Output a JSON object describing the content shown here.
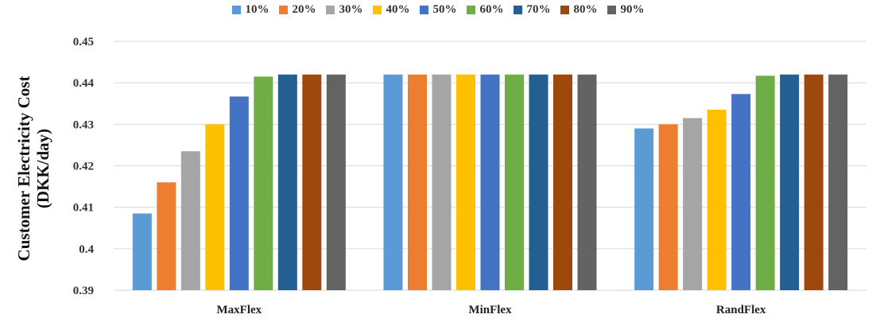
{
  "chart_data": {
    "type": "bar",
    "categories": [
      "MaxFlex",
      "MinFlex",
      "RandFlex"
    ],
    "series": [
      {
        "name": "10%",
        "color": "#5B9BD5",
        "values": [
          0.4085,
          0.442,
          0.429
        ]
      },
      {
        "name": "20%",
        "color": "#ED7D31",
        "values": [
          0.416,
          0.442,
          0.43
        ]
      },
      {
        "name": "30%",
        "color": "#A5A5A5",
        "values": [
          0.4235,
          0.442,
          0.4315
        ]
      },
      {
        "name": "40%",
        "color": "#FFC000",
        "values": [
          0.43,
          0.442,
          0.4335
        ]
      },
      {
        "name": "50%",
        "color": "#4472C4",
        "values": [
          0.4367,
          0.442,
          0.4373
        ]
      },
      {
        "name": "60%",
        "color": "#70AD47",
        "values": [
          0.4415,
          0.442,
          0.4417
        ]
      },
      {
        "name": "70%",
        "color": "#255E91",
        "values": [
          0.442,
          0.442,
          0.442
        ]
      },
      {
        "name": "80%",
        "color": "#9E480E",
        "values": [
          0.442,
          0.442,
          0.442
        ]
      },
      {
        "name": "90%",
        "color": "#636363",
        "values": [
          0.442,
          0.442,
          0.442
        ]
      }
    ],
    "ylabel_lines": [
      "Customer Electricity Cost",
      "(DKK/day)"
    ],
    "ylim": [
      0.39,
      0.45
    ],
    "yticks": [
      "0.39",
      "0.4",
      "0.41",
      "0.42",
      "0.43",
      "0.44",
      "0.45"
    ],
    "grid": true,
    "legend_position": "top-center"
  }
}
